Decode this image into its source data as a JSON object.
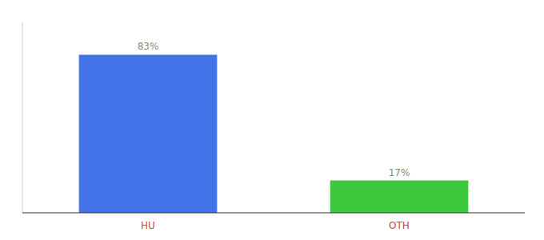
{
  "chart_data": {
    "type": "bar",
    "categories": [
      "HU",
      "OTH"
    ],
    "values": [
      83,
      17
    ],
    "value_labels": [
      "83%",
      "17%"
    ],
    "colors": [
      "#4472e8",
      "#3dc93d"
    ],
    "ylim": [
      0,
      100
    ],
    "data_labels": true,
    "tick_labels": "x"
  }
}
